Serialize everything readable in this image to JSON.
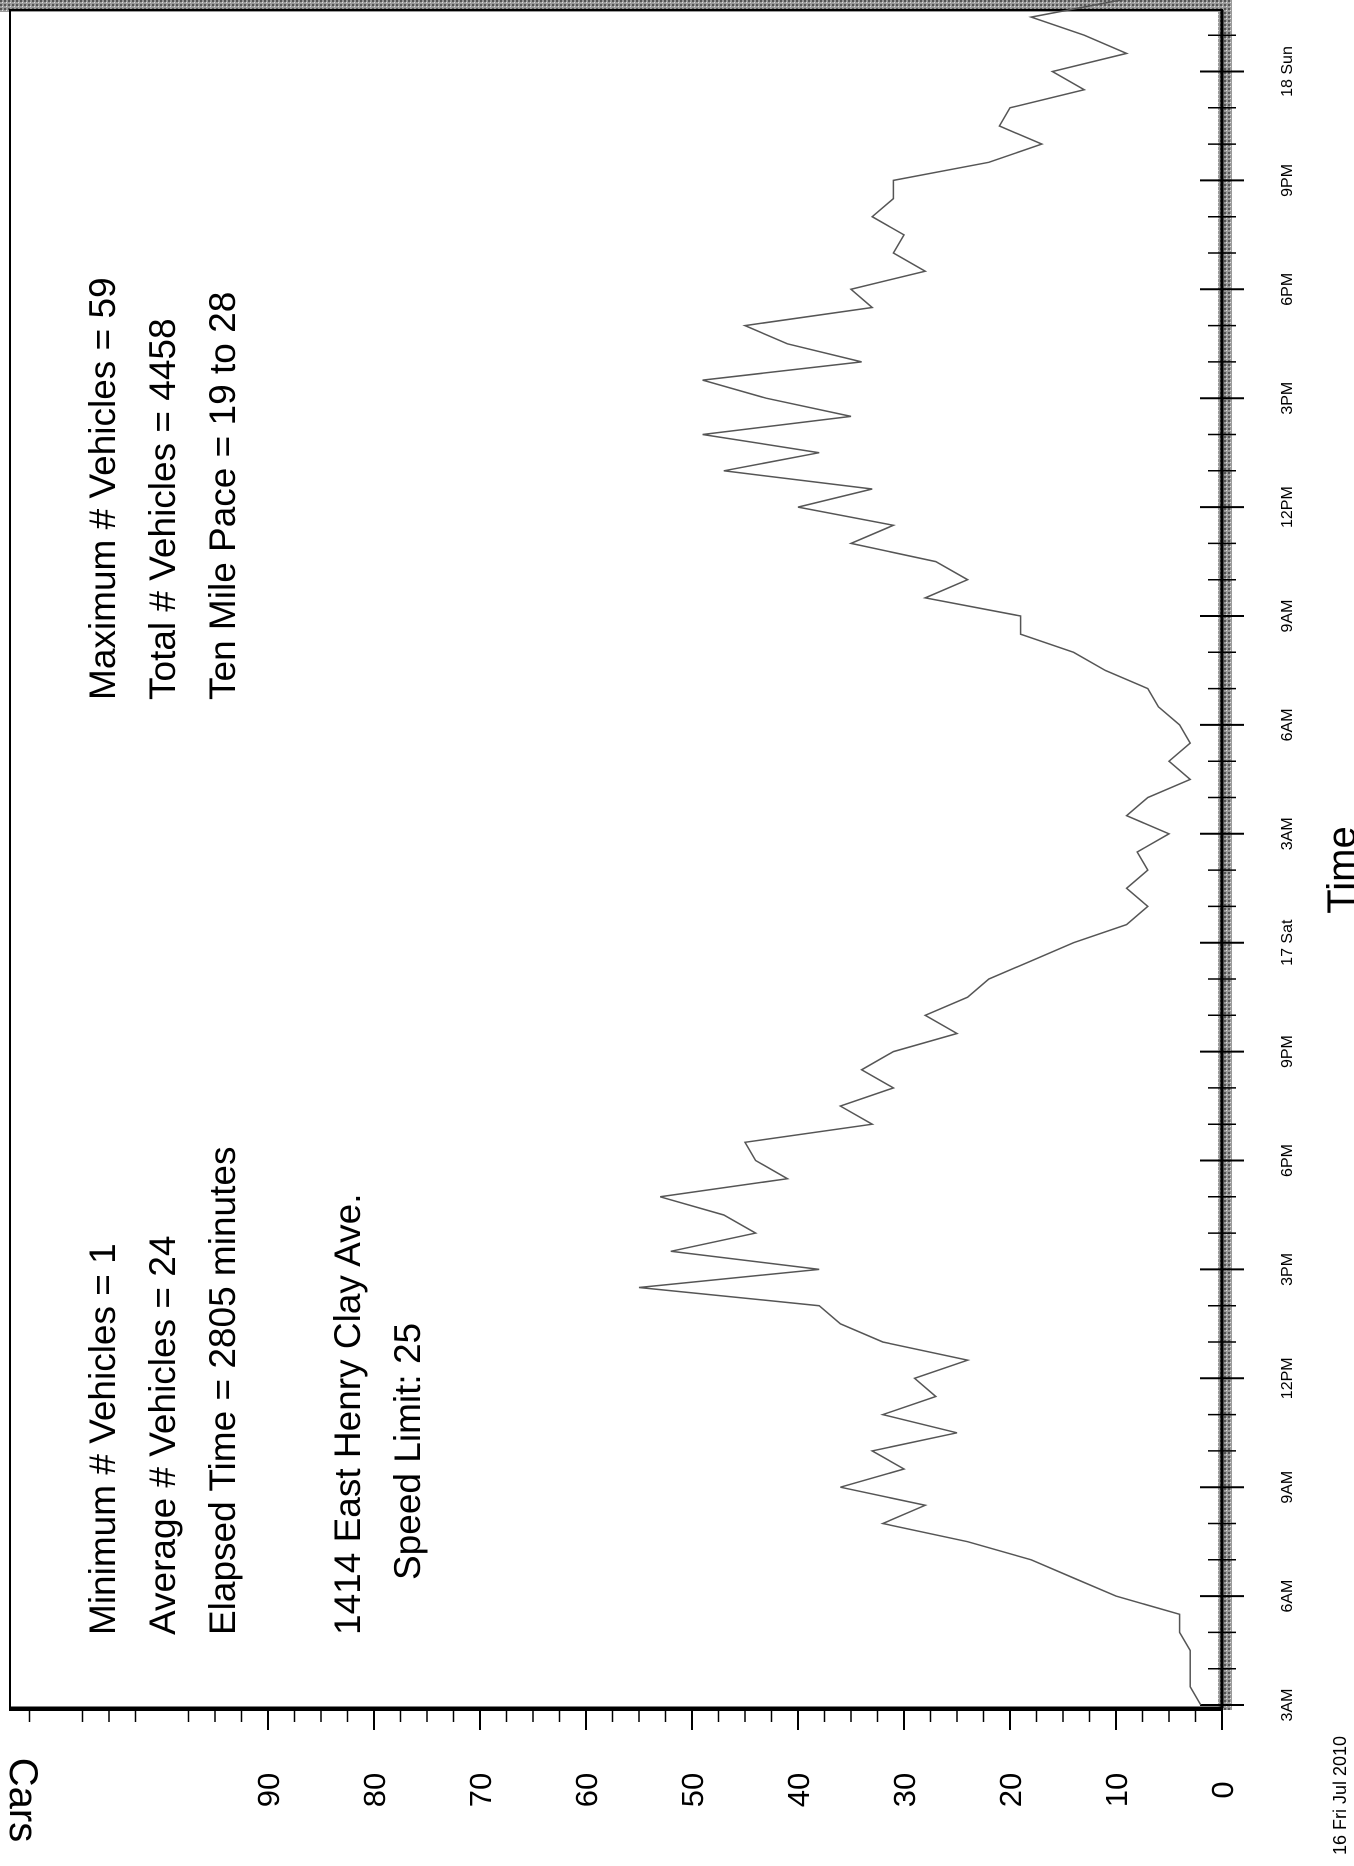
{
  "chart_data": {
    "type": "line",
    "title": "",
    "xlabel": "Time",
    "ylabel": "Cars",
    "ylim": [
      0,
      95
    ],
    "yticks": [
      "0",
      "10",
      "20",
      "30",
      "40",
      "50",
      "60",
      "70",
      "80",
      "90"
    ],
    "xticks": [
      "3AM",
      "6AM",
      "9AM",
      "12PM",
      "3PM",
      "6PM",
      "9PM",
      "17 Sat",
      "3AM",
      "6AM",
      "9AM",
      "12PM",
      "3PM",
      "6PM",
      "9PM",
      "18 Sun"
    ],
    "start_label": "16 Fri Jul 2010",
    "grid": false,
    "legend": "none",
    "series_color": "#555555",
    "series": [
      {
        "x_hours": [
          0.0,
          0.5,
          1.0,
          1.5,
          2.0,
          2.5,
          3.0,
          3.5,
          4.0,
          4.5,
          5.0,
          5.5,
          6.0,
          6.5,
          7.0,
          7.5,
          8.0,
          8.5,
          9.0,
          9.5,
          10.0,
          10.5,
          11.0,
          11.5,
          12.0,
          12.5,
          13.0,
          13.5,
          14.0,
          14.5,
          15.0,
          15.5,
          16.0,
          16.5,
          17.0,
          17.5,
          18.0,
          18.5,
          19.0,
          19.5,
          20.0,
          20.5,
          21.0,
          21.5,
          22.0,
          22.5,
          23.0,
          23.5,
          24.0,
          24.5,
          25.0,
          25.5,
          26.0,
          26.5,
          27.0,
          27.5,
          28.0,
          28.5,
          29.0,
          29.5,
          30.0,
          30.5,
          31.0,
          31.5,
          32.0,
          32.5,
          33.0,
          33.5,
          34.0,
          34.5,
          35.0,
          35.5,
          36.0,
          36.5,
          37.0,
          37.5,
          38.0,
          38.5,
          39.0,
          39.5,
          40.0,
          40.5,
          41.0,
          41.5,
          42.0,
          42.5,
          43.0,
          43.5,
          44.0,
          44.5,
          45.0,
          45.5,
          46.0,
          46.5,
          47.0,
          47.5
        ],
        "values": [
          2,
          3,
          3,
          3,
          4,
          4,
          10,
          14,
          18,
          24,
          32,
          28,
          36,
          30,
          33,
          25,
          32,
          27,
          29,
          24,
          32,
          36,
          38,
          55,
          38,
          52,
          44,
          47,
          53,
          41,
          44,
          45,
          33,
          36,
          31,
          34,
          31,
          25,
          28,
          24,
          22,
          18,
          14,
          9,
          7,
          9,
          7,
          8,
          5,
          9,
          7,
          3,
          5,
          3,
          4,
          6,
          7,
          11,
          14,
          19,
          19,
          28,
          24,
          27,
          35,
          31,
          40,
          33,
          47,
          38,
          49,
          35,
          43,
          49,
          34,
          41,
          45,
          33,
          35,
          28,
          31,
          30,
          33,
          31,
          31,
          22,
          17,
          21,
          20,
          13,
          16,
          9,
          13,
          18,
          9,
          14
        ]
      }
    ]
  },
  "annotations": {
    "stats_left": [
      "Minimum # Vehicles = 1",
      "Average # Vehicles = 24",
      "Elapsed Time = 2805 minutes"
    ],
    "stats_right": [
      "Maximum # Vehicles = 59",
      "Total # Vehicles = 4458",
      "Ten Mile Pace = 19 to 28"
    ],
    "location": "1414 East Henry Clay Ave.",
    "speed_limit": "Speed Limit: 25"
  }
}
